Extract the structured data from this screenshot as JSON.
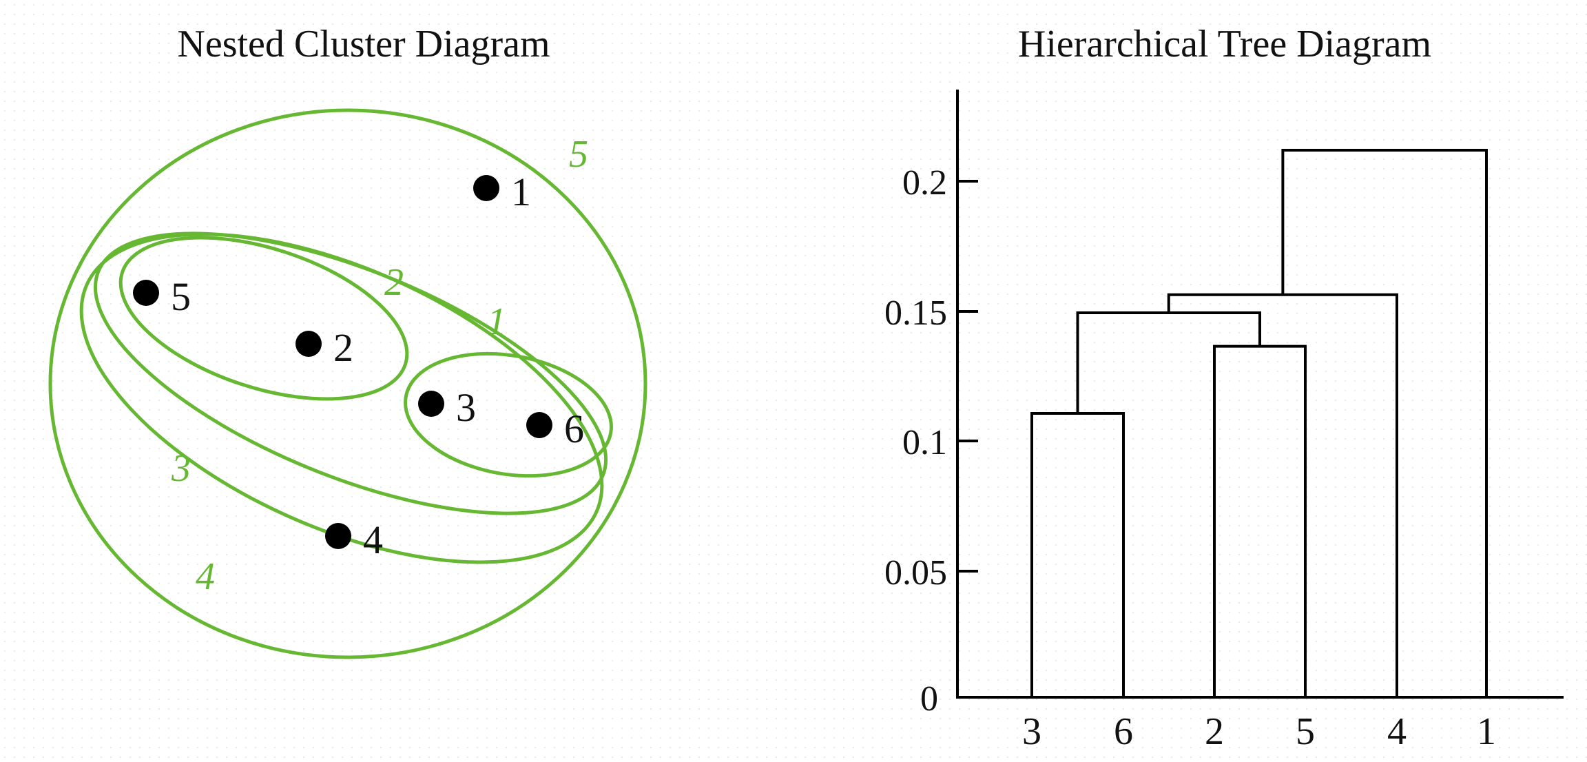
{
  "colors": {
    "cluster_outline": "#66b832",
    "point": "#000000",
    "tree_line": "#000000",
    "text": "#111111"
  },
  "left_panel": {
    "title": "Nested Cluster Diagram",
    "points": [
      {
        "label": "1"
      },
      {
        "label": "5"
      },
      {
        "label": "2"
      },
      {
        "label": "3"
      },
      {
        "label": "6"
      },
      {
        "label": "4"
      }
    ],
    "clusters": [
      {
        "label": "1"
      },
      {
        "label": "2"
      },
      {
        "label": "3"
      },
      {
        "label": "4"
      },
      {
        "label": "5"
      }
    ]
  },
  "right_panel": {
    "title": "Hierarchical Tree Diagram",
    "y_ticks": [
      "0",
      "0.05",
      "0.1",
      "0.15",
      "0.2"
    ],
    "leaves": [
      "3",
      "6",
      "2",
      "5",
      "4",
      "1"
    ]
  },
  "chart_data": {
    "type": "dendrogram",
    "leaves": [
      "3",
      "6",
      "2",
      "5",
      "4",
      "1"
    ],
    "yticks": [
      0,
      0.05,
      0.1,
      0.15,
      0.2
    ],
    "ylim": [
      0,
      0.235
    ],
    "merges": [
      {
        "left": "3",
        "right": "6",
        "height": 0.11
      },
      {
        "left": "2",
        "right": "5",
        "height": 0.136
      },
      {
        "left": "3,6",
        "right": "2,5",
        "height": 0.149
      },
      {
        "left": "3,6,2,5",
        "right": "4",
        "height": 0.156
      },
      {
        "left": "3,6,2,5,4",
        "right": "1",
        "height": 0.212
      }
    ]
  }
}
